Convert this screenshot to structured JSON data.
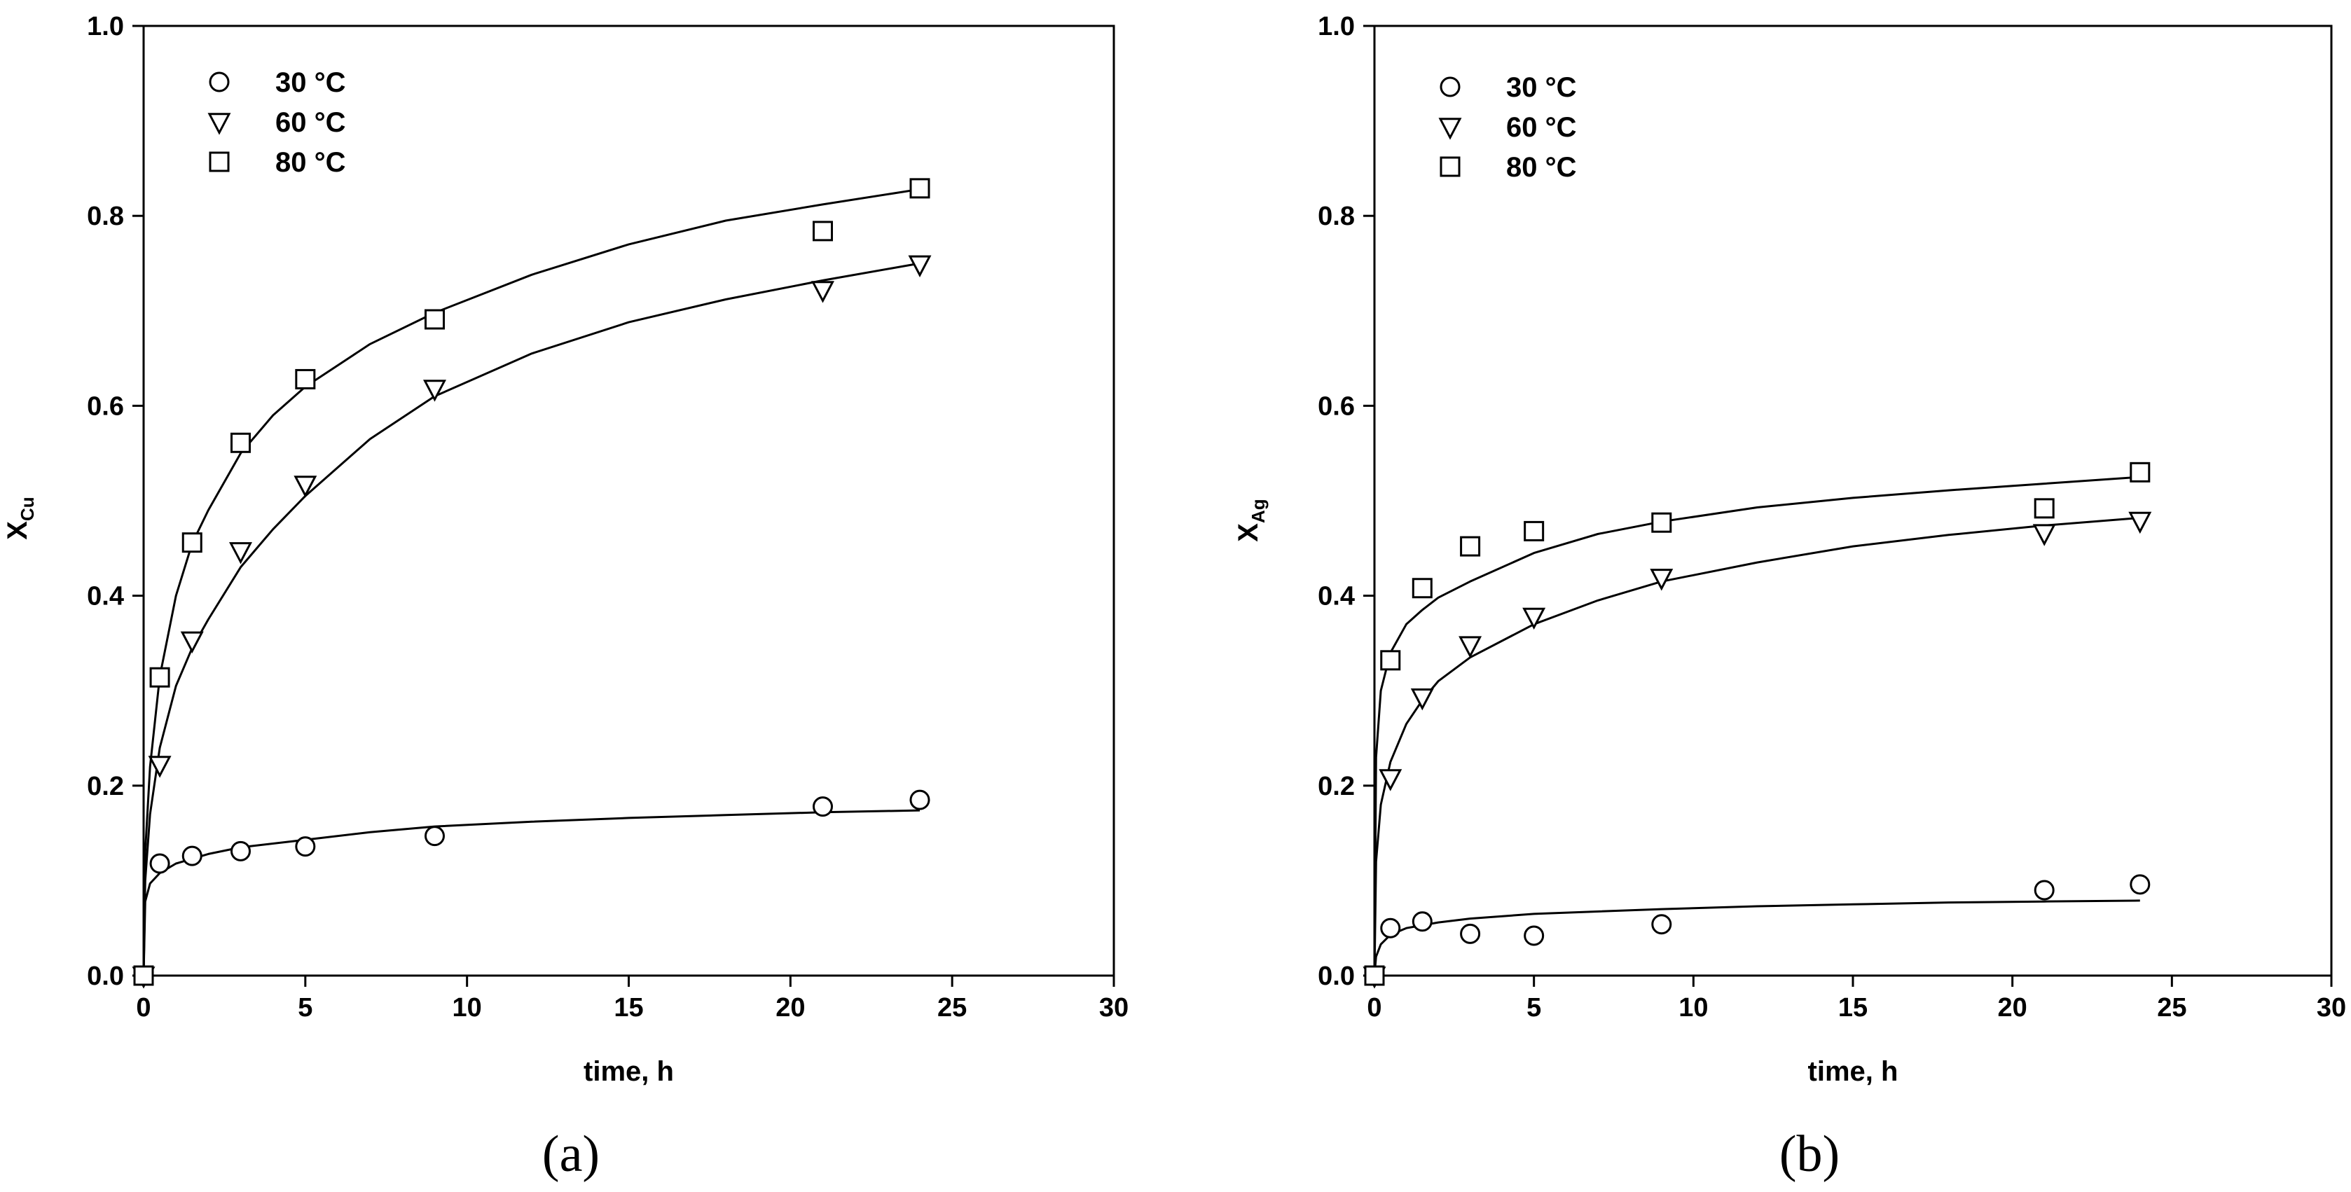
{
  "chart_data": [
    {
      "type": "scatter",
      "panel_label": "(a)",
      "xlabel": "time, h",
      "ylabel_main": "X",
      "ylabel_sub": "Cu",
      "xlim": [
        0,
        30
      ],
      "ylim": [
        0,
        1.0
      ],
      "xticks": [
        "0",
        "5",
        "10",
        "15",
        "20",
        "25",
        "30"
      ],
      "yticks": [
        "0.0",
        "0.2",
        "0.4",
        "0.6",
        "0.8",
        "1.0"
      ],
      "grid": false,
      "legend_position": "top-left",
      "series": [
        {
          "name": "30 °C",
          "marker": "circle",
          "x": [
            0,
            0.5,
            1.5,
            3,
            5,
            9,
            21,
            24
          ],
          "y": [
            0,
            0.118,
            0.126,
            0.131,
            0.136,
            0.147,
            0.178,
            0.185
          ],
          "fit": [
            [
              0,
              0
            ],
            [
              0.05,
              0.078
            ],
            [
              0.2,
              0.097
            ],
            [
              0.5,
              0.108
            ],
            [
              1,
              0.118
            ],
            [
              2,
              0.128
            ],
            [
              3,
              0.135
            ],
            [
              5,
              0.143
            ],
            [
              7,
              0.151
            ],
            [
              9,
              0.157
            ],
            [
              12,
              0.162
            ],
            [
              15,
              0.166
            ],
            [
              18,
              0.169
            ],
            [
              21,
              0.172
            ],
            [
              24,
              0.174
            ]
          ]
        },
        {
          "name": "60 °C",
          "marker": "triangle-down",
          "x": [
            0,
            0.5,
            1.5,
            3,
            5,
            9,
            21,
            24
          ],
          "y": [
            0,
            0.222,
            0.353,
            0.447,
            0.517,
            0.618,
            0.722,
            0.749
          ],
          "fit": [
            [
              0,
              0
            ],
            [
              0.05,
              0.1
            ],
            [
              0.2,
              0.17
            ],
            [
              0.5,
              0.24
            ],
            [
              1,
              0.305
            ],
            [
              1.5,
              0.345
            ],
            [
              2,
              0.375
            ],
            [
              3,
              0.43
            ],
            [
              4,
              0.47
            ],
            [
              5,
              0.505
            ],
            [
              7,
              0.565
            ],
            [
              9,
              0.61
            ],
            [
              12,
              0.655
            ],
            [
              15,
              0.688
            ],
            [
              18,
              0.712
            ],
            [
              21,
              0.732
            ],
            [
              24,
              0.75
            ]
          ]
        },
        {
          "name": "80 °C",
          "marker": "square",
          "x": [
            0,
            0.5,
            1.5,
            3,
            5,
            9,
            21,
            24
          ],
          "y": [
            0,
            0.314,
            0.456,
            0.561,
            0.628,
            0.691,
            0.784,
            0.829
          ],
          "fit": [
            [
              0,
              0
            ],
            [
              0.05,
              0.13
            ],
            [
              0.2,
              0.22
            ],
            [
              0.5,
              0.315
            ],
            [
              1,
              0.4
            ],
            [
              1.5,
              0.455
            ],
            [
              2,
              0.49
            ],
            [
              3,
              0.55
            ],
            [
              4,
              0.59
            ],
            [
              5,
              0.62
            ],
            [
              7,
              0.665
            ],
            [
              9,
              0.698
            ],
            [
              12,
              0.738
            ],
            [
              15,
              0.77
            ],
            [
              18,
              0.795
            ],
            [
              21,
              0.812
            ],
            [
              24,
              0.828
            ]
          ]
        }
      ]
    },
    {
      "type": "scatter",
      "panel_label": "(b)",
      "xlabel": "time, h",
      "ylabel_main": "X",
      "ylabel_sub": "Ag",
      "xlim": [
        0,
        30
      ],
      "ylim": [
        0,
        1.0
      ],
      "xticks": [
        "0",
        "5",
        "10",
        "15",
        "20",
        "25",
        "30"
      ],
      "yticks": [
        "0.0",
        "0.2",
        "0.4",
        "0.6",
        "0.8",
        "1.0"
      ],
      "grid": false,
      "legend_position": "top-left",
      "series": [
        {
          "name": "30 °C",
          "marker": "circle",
          "x": [
            0,
            0.5,
            1.5,
            3,
            5,
            9,
            21,
            24
          ],
          "y": [
            0,
            0.05,
            0.057,
            0.044,
            0.042,
            0.054,
            0.09,
            0.096
          ],
          "fit": [
            [
              0,
              0
            ],
            [
              0.05,
              0.02
            ],
            [
              0.2,
              0.033
            ],
            [
              0.5,
              0.043
            ],
            [
              1,
              0.05
            ],
            [
              2,
              0.056
            ],
            [
              3,
              0.06
            ],
            [
              5,
              0.065
            ],
            [
              9,
              0.07
            ],
            [
              12,
              0.073
            ],
            [
              15,
              0.075
            ],
            [
              18,
              0.077
            ],
            [
              21,
              0.078
            ],
            [
              24,
              0.079
            ]
          ]
        },
        {
          "name": "60 °C",
          "marker": "triangle-down",
          "x": [
            0,
            0.5,
            1.5,
            3,
            5,
            9,
            21,
            24
          ],
          "y": [
            0,
            0.208,
            0.293,
            0.348,
            0.378,
            0.419,
            0.466,
            0.479
          ],
          "fit": [
            [
              0,
              0
            ],
            [
              0.05,
              0.12
            ],
            [
              0.2,
              0.18
            ],
            [
              0.5,
              0.225
            ],
            [
              1,
              0.265
            ],
            [
              1.5,
              0.29
            ],
            [
              2,
              0.31
            ],
            [
              3,
              0.335
            ],
            [
              5,
              0.37
            ],
            [
              7,
              0.395
            ],
            [
              9,
              0.415
            ],
            [
              12,
              0.435
            ],
            [
              15,
              0.452
            ],
            [
              18,
              0.464
            ],
            [
              21,
              0.474
            ],
            [
              24,
              0.482
            ]
          ]
        },
        {
          "name": "80 °C",
          "marker": "square",
          "x": [
            0,
            0.5,
            1.5,
            3,
            5,
            9,
            21,
            24
          ],
          "y": [
            0,
            0.332,
            0.408,
            0.452,
            0.468,
            0.477,
            0.492,
            0.53
          ],
          "fit": [
            [
              0,
              0
            ],
            [
              0.05,
              0.23
            ],
            [
              0.2,
              0.3
            ],
            [
              0.5,
              0.34
            ],
            [
              1,
              0.37
            ],
            [
              1.5,
              0.385
            ],
            [
              2,
              0.398
            ],
            [
              3,
              0.415
            ],
            [
              5,
              0.445
            ],
            [
              7,
              0.465
            ],
            [
              9,
              0.478
            ],
            [
              12,
              0.493
            ],
            [
              15,
              0.503
            ],
            [
              18,
              0.511
            ],
            [
              21,
              0.518
            ],
            [
              24,
              0.525
            ]
          ]
        }
      ]
    }
  ]
}
